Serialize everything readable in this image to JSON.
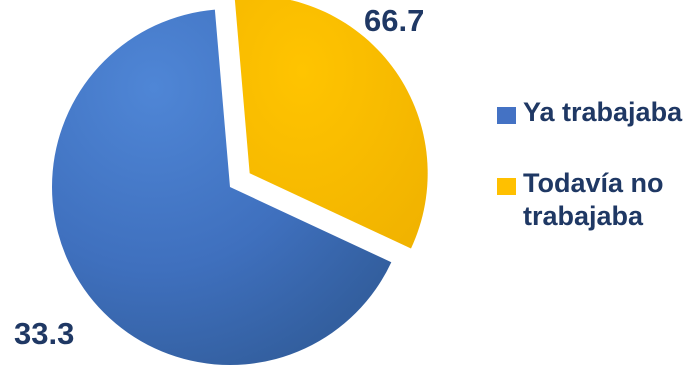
{
  "chart_data": {
    "type": "pie",
    "title": "",
    "categories": [
      "Ya trabajaba",
      "Todavía no trabajaba"
    ],
    "values": [
      66.7,
      33.3
    ],
    "data_labels": [
      "66.7",
      "33.3"
    ],
    "colors": [
      "#4472c4",
      "#ffc000"
    ],
    "exploded": [
      false,
      true
    ],
    "start_angle": "top-left, clockwise",
    "legend": "right",
    "legend_entries": [
      "Ya trabajaba",
      "Todavía no trabajaba"
    ]
  }
}
